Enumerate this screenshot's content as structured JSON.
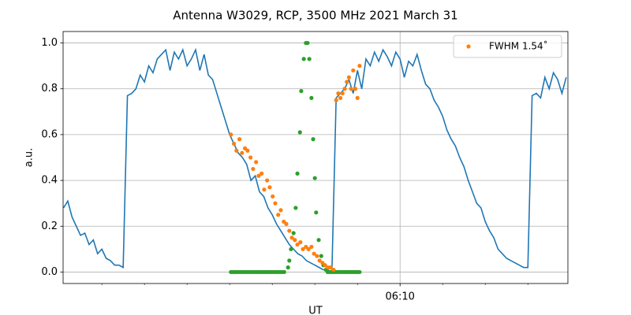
{
  "chart_data": {
    "type": "line",
    "title": "Antenna W3029, RCP, 3500 MHz 2021 March 31",
    "xlabel": "UT",
    "ylabel": "a.u.",
    "xlim": [
      362.09,
      373.94
    ],
    "ylim": [
      -0.05,
      1.05
    ],
    "xticks": [
      {
        "value": 370,
        "label": "06:10"
      }
    ],
    "xminorticks": [
      363,
      364,
      365,
      366,
      367,
      368,
      369,
      371,
      372,
      373
    ],
    "yticks": [
      {
        "value": 0,
        "label": "0.0"
      },
      {
        "value": 0.2,
        "label": "0.2"
      },
      {
        "value": 0.4,
        "label": "0.4"
      },
      {
        "value": 0.6,
        "label": "0.6"
      },
      {
        "value": 0.8,
        "label": "0.8"
      },
      {
        "value": 1.0,
        "label": "1.0"
      }
    ],
    "grid": true,
    "legend": "upper right",
    "series": [
      {
        "type": "line",
        "color": "#1f77b4",
        "x": [
          362.1,
          362.2,
          362.3,
          362.4,
          362.5,
          362.6,
          362.7,
          362.8,
          362.9,
          363.0,
          363.1,
          363.2,
          363.3,
          363.4,
          363.5,
          363.6,
          363.7,
          363.8,
          363.9,
          364.0,
          364.1,
          364.2,
          364.3,
          364.4,
          364.5,
          364.6,
          364.7,
          364.8,
          364.9,
          365.0,
          365.1,
          365.2,
          365.3,
          365.4,
          365.5,
          365.6,
          365.7,
          365.8,
          365.9,
          366.0,
          366.1,
          366.2,
          366.3,
          366.4,
          366.5,
          366.6,
          366.7,
          366.8,
          366.9,
          367.0,
          367.1,
          367.2,
          367.3,
          367.4,
          367.5,
          367.6,
          367.7,
          367.8,
          367.9,
          368.0,
          368.1,
          368.2,
          368.3,
          368.4,
          368.5,
          368.6,
          368.7,
          368.8,
          368.9,
          369.0,
          369.1,
          369.2,
          369.3,
          369.4,
          369.5,
          369.6,
          369.7,
          369.8,
          369.9,
          370.0,
          370.1,
          370.2,
          370.3,
          370.4,
          370.5,
          370.6,
          370.7,
          370.8,
          370.9,
          371.0,
          371.1,
          371.2,
          371.3,
          371.4,
          371.5,
          371.6,
          371.7,
          371.8,
          371.9,
          372.0,
          372.1,
          372.2,
          372.3,
          372.4,
          372.5,
          372.6,
          372.7,
          372.8,
          372.9,
          373.0,
          373.1,
          373.2,
          373.3,
          373.4,
          373.5,
          373.6,
          373.7,
          373.8,
          373.9
        ],
        "values": [
          0.28,
          0.31,
          0.24,
          0.2,
          0.16,
          0.17,
          0.12,
          0.14,
          0.08,
          0.1,
          0.06,
          0.05,
          0.03,
          0.03,
          0.02,
          0.77,
          0.78,
          0.8,
          0.86,
          0.83,
          0.9,
          0.87,
          0.93,
          0.95,
          0.97,
          0.88,
          0.96,
          0.93,
          0.97,
          0.9,
          0.93,
          0.97,
          0.88,
          0.95,
          0.86,
          0.84,
          0.78,
          0.72,
          0.66,
          0.6,
          0.56,
          0.52,
          0.5,
          0.47,
          0.4,
          0.42,
          0.35,
          0.33,
          0.28,
          0.25,
          0.21,
          0.18,
          0.15,
          0.12,
          0.1,
          0.08,
          0.07,
          0.05,
          0.04,
          0.03,
          0.02,
          0.01,
          0.01,
          0,
          0.76,
          0.78,
          0.8,
          0.84,
          0.78,
          0.88,
          0.8,
          0.93,
          0.9,
          0.96,
          0.92,
          0.97,
          0.94,
          0.9,
          0.96,
          0.93,
          0.85,
          0.92,
          0.9,
          0.95,
          0.88,
          0.82,
          0.8,
          0.75,
          0.72,
          0.68,
          0.62,
          0.58,
          0.55,
          0.5,
          0.46,
          0.4,
          0.35,
          0.3,
          0.28,
          0.22,
          0.18,
          0.15,
          0.1,
          0.08,
          0.06,
          0.05,
          0.04,
          0.03,
          0.02,
          0.02,
          0.77,
          0.78,
          0.76,
          0.85,
          0.8,
          0.87,
          0.84,
          0.78,
          0.85
        ]
      },
      {
        "type": "scatter",
        "color": "#2ca02c",
        "x": [
          366.03,
          366.08,
          366.13,
          366.18,
          366.23,
          366.28,
          366.33,
          366.38,
          366.43,
          366.48,
          366.53,
          366.58,
          366.63,
          366.68,
          366.73,
          366.78,
          366.83,
          366.88,
          366.93,
          366.98,
          367.03,
          367.08,
          367.13,
          367.18,
          367.23,
          367.28,
          367.37,
          367.4,
          367.44,
          367.5,
          367.55,
          367.59,
          367.65,
          367.68,
          367.74,
          367.79,
          367.83,
          367.87,
          367.92,
          367.96,
          368.0,
          368.03,
          368.09,
          368.15,
          368.2,
          368.26,
          368.3,
          368.35,
          368.4,
          368.45,
          368.5,
          368.55,
          368.6,
          368.65,
          368.7,
          368.75,
          368.8,
          368.85,
          368.9,
          368.95,
          369.0,
          369.05
        ],
        "values": [
          0,
          0,
          0,
          0,
          0,
          0,
          0,
          0,
          0,
          0,
          0,
          0,
          0,
          0,
          0,
          0,
          0,
          0,
          0,
          0,
          0,
          0,
          0,
          0,
          0,
          0,
          0.02,
          0.05,
          0.1,
          0.17,
          0.28,
          0.43,
          0.61,
          0.79,
          0.93,
          1.0,
          1.0,
          0.93,
          0.76,
          0.58,
          0.41,
          0.26,
          0.14,
          0.07,
          0.03,
          0.01,
          0,
          0,
          0,
          0,
          0,
          0,
          0,
          0,
          0,
          0,
          0,
          0,
          0,
          0,
          0,
          0
        ]
      },
      {
        "type": "scatter",
        "color": "#ff7f0e",
        "name": "FWHM 1.54˚",
        "x": [
          366.03,
          366.1,
          366.16,
          366.23,
          366.29,
          366.36,
          366.42,
          366.49,
          366.55,
          366.62,
          366.68,
          366.75,
          366.81,
          366.88,
          366.94,
          367.01,
          367.07,
          367.14,
          367.2,
          367.27,
          367.33,
          367.4,
          367.46,
          367.53,
          367.59,
          367.66,
          367.72,
          367.79,
          367.85,
          367.92,
          367.98,
          368.05,
          368.11,
          368.18,
          368.24,
          368.31,
          368.37,
          368.44,
          368.5,
          368.55,
          368.6,
          368.65,
          368.7,
          368.75,
          368.8,
          368.85,
          368.9,
          368.95,
          369.0,
          369.05
        ],
        "values": [
          0.6,
          0.56,
          0.53,
          0.58,
          0.52,
          0.54,
          0.53,
          0.5,
          0.45,
          0.48,
          0.42,
          0.43,
          0.36,
          0.4,
          0.37,
          0.33,
          0.3,
          0.25,
          0.27,
          0.22,
          0.21,
          0.18,
          0.15,
          0.14,
          0.12,
          0.13,
          0.1,
          0.11,
          0.1,
          0.11,
          0.08,
          0.07,
          0.05,
          0.04,
          0.03,
          0.02,
          0.02,
          0.01,
          0.75,
          0.78,
          0.76,
          0.78,
          0.8,
          0.83,
          0.85,
          0.8,
          0.88,
          0.8,
          0.76,
          0.9
        ]
      }
    ]
  }
}
